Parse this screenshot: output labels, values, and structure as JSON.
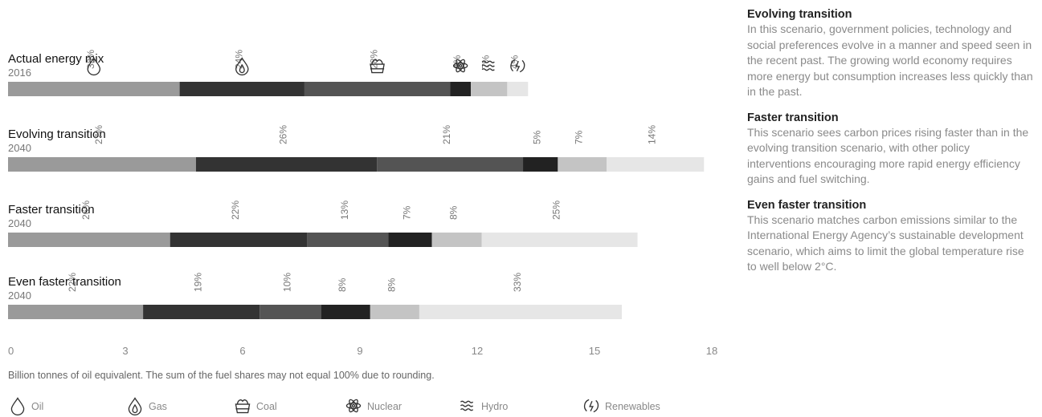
{
  "chart_data": {
    "type": "stacked-bar-horizontal",
    "x_ticks": [
      "0",
      "3",
      "6",
      "9",
      "12",
      "15",
      "18"
    ],
    "xlim": [
      0,
      18
    ],
    "note": "Billion tonnes of oil equivalent. The sum of the fuel shares may not equal 100% due to rounding.",
    "fuels": [
      "Oil",
      "Gas",
      "Coal",
      "Nuclear",
      "Hydro",
      "Renewables"
    ],
    "fuel_colors": [
      "#9a9a9a",
      "#333333",
      "#545454",
      "#222222",
      "#c4c4c4",
      "#e6e6e6"
    ],
    "scenarios": [
      {
        "name": "Actual energy mix",
        "year": "2016",
        "total": 13.3,
        "shares": [
          33,
          24,
          28,
          4,
          7,
          4
        ],
        "labels": [
          "33%",
          "24%",
          "28%",
          "4%",
          "7%",
          "4%"
        ]
      },
      {
        "name": "Evolving transition",
        "year": "2040",
        "total": 17.8,
        "shares": [
          27,
          26,
          21,
          5,
          7,
          14
        ],
        "labels": [
          "27%",
          "26%",
          "21%",
          "5%",
          "7%",
          "14%"
        ]
      },
      {
        "name": "Faster transition",
        "year": "2040",
        "total": 16.1,
        "shares": [
          26,
          22,
          13,
          7,
          8,
          25
        ],
        "labels": [
          "26%",
          "22%",
          "13%",
          "7%",
          "8%",
          "25%"
        ]
      },
      {
        "name": "Even faster transition",
        "year": "2040",
        "total": 15.7,
        "shares": [
          22,
          19,
          10,
          8,
          8,
          33
        ],
        "labels": [
          "22%",
          "19%",
          "10%",
          "8%",
          "8%",
          "33%"
        ]
      }
    ]
  },
  "descriptions": [
    {
      "title": "Evolving transition",
      "body": "In this scenario, government policies, technology and social preferences evolve in a manner and speed seen in the recent past. The growing world economy requires more energy but consumption increases less quickly than in the past."
    },
    {
      "title": "Faster transition",
      "body": "This scenario sees carbon prices rising faster than in the evolving transition scenario, with other policy interventions encouraging more rapid energy efficiency gains and fuel switching."
    },
    {
      "title": "Even faster transition",
      "body": "This scenario matches carbon emissions similar to the International Energy Agency’s sustainable development scenario, which aims to limit the global temperature rise to well below 2°C."
    }
  ]
}
